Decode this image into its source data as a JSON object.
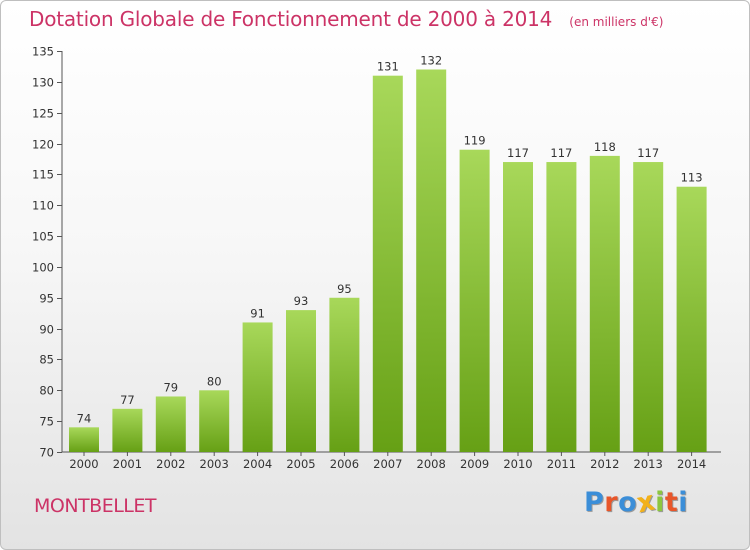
{
  "title": "Dotation Globale de Fonctionnement de 2000 à 2014",
  "unit_note": "(en milliers d'€)",
  "town": "MONTBELLET",
  "logo": {
    "text": "Proxiti",
    "letters": [
      "P",
      "r",
      "o",
      "x",
      "i",
      "t",
      "i"
    ],
    "letter_colors": [
      "#3b8ed8",
      "#e8562a",
      "#3b8ed8",
      "#f2b11b",
      "#8cc63f",
      "#e8562a",
      "#3b8ed8"
    ]
  },
  "colors": {
    "accent": "#cc3366",
    "bar_light": "#a8d85a",
    "bar_dark": "#66a015",
    "axis": "#555555",
    "grid": "#cccccc"
  },
  "chart_data": {
    "type": "bar",
    "categories": [
      "2000",
      "2001",
      "2002",
      "2003",
      "2004",
      "2005",
      "2006",
      "2007",
      "2008",
      "2009",
      "2010",
      "2011",
      "2012",
      "2013",
      "2014"
    ],
    "values": [
      74,
      77,
      79,
      80,
      91,
      93,
      95,
      131,
      132,
      119,
      117,
      117,
      118,
      117,
      113
    ],
    "ylim": [
      70,
      135
    ],
    "yticks": [
      70,
      75,
      80,
      85,
      90,
      95,
      100,
      105,
      110,
      115,
      120,
      125,
      130,
      135
    ],
    "grid": false,
    "legend": "none"
  }
}
